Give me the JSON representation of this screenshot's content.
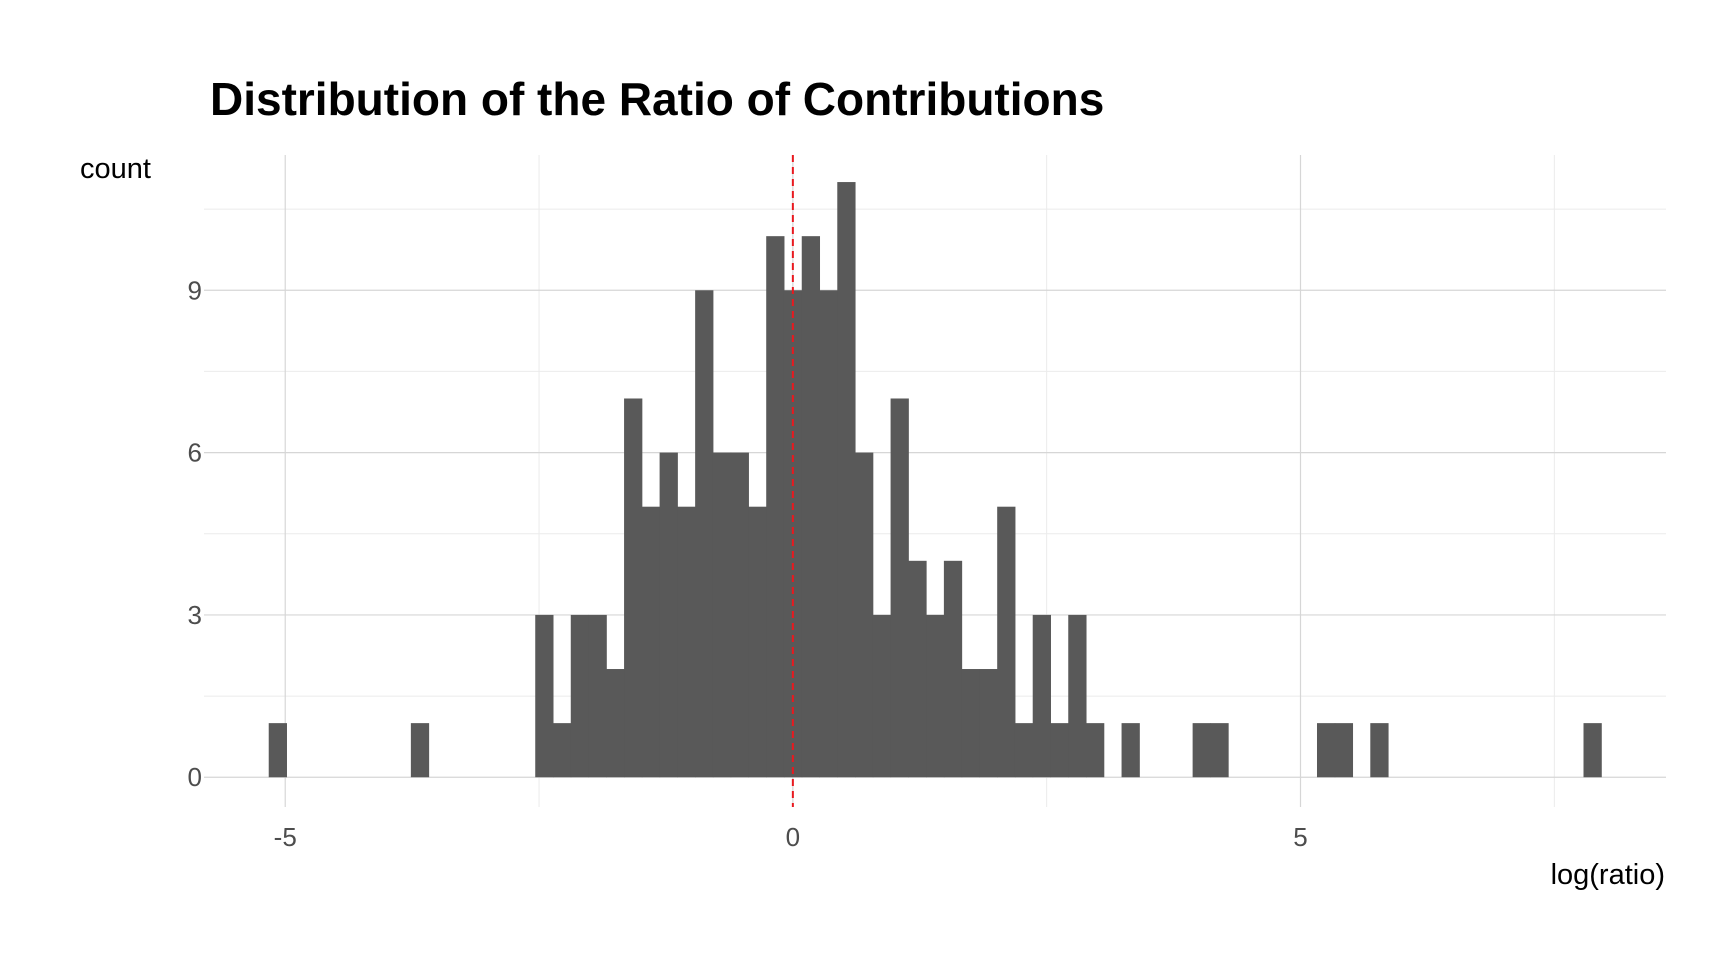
{
  "chart_data": {
    "type": "bar",
    "title": "Distribution of the Ratio of Contributions",
    "xlabel": "log(ratio)",
    "ylabel": "count",
    "xlim": [
      -5.8,
      8.6
    ],
    "ylim": [
      -0.55,
      11.5
    ],
    "xticks": [
      -5,
      0,
      5
    ],
    "xtick_labels": [
      "-5",
      "0",
      "5"
    ],
    "yticks": [
      0,
      3,
      6,
      9
    ],
    "ytick_labels": [
      "0",
      "3",
      "6",
      "9"
    ],
    "grid": true,
    "bar_color": "#595959",
    "reference_line": {
      "x": 0,
      "color": "#e8191f",
      "style": "dashed"
    },
    "bin_width": 0.175,
    "bins": [
      {
        "x": -5.075,
        "count": 1
      },
      {
        "x": -3.675,
        "count": 1
      },
      {
        "x": -2.45,
        "count": 3
      },
      {
        "x": -2.275,
        "count": 1
      },
      {
        "x": -2.1,
        "count": 3
      },
      {
        "x": -1.925,
        "count": 3
      },
      {
        "x": -1.75,
        "count": 2
      },
      {
        "x": -1.575,
        "count": 7
      },
      {
        "x": -1.4,
        "count": 5
      },
      {
        "x": -1.225,
        "count": 6
      },
      {
        "x": -1.05,
        "count": 5
      },
      {
        "x": -0.875,
        "count": 9
      },
      {
        "x": -0.7,
        "count": 6
      },
      {
        "x": -0.525,
        "count": 6
      },
      {
        "x": -0.35,
        "count": 5
      },
      {
        "x": -0.175,
        "count": 10
      },
      {
        "x": 0.0,
        "count": 9
      },
      {
        "x": 0.175,
        "count": 10
      },
      {
        "x": 0.35,
        "count": 9
      },
      {
        "x": 0.525,
        "count": 11
      },
      {
        "x": 0.7,
        "count": 6
      },
      {
        "x": 0.875,
        "count": 3
      },
      {
        "x": 1.05,
        "count": 7
      },
      {
        "x": 1.225,
        "count": 4
      },
      {
        "x": 1.4,
        "count": 3
      },
      {
        "x": 1.575,
        "count": 4
      },
      {
        "x": 1.75,
        "count": 2
      },
      {
        "x": 1.925,
        "count": 2
      },
      {
        "x": 2.1,
        "count": 5
      },
      {
        "x": 2.275,
        "count": 1
      },
      {
        "x": 2.45,
        "count": 3
      },
      {
        "x": 2.625,
        "count": 1
      },
      {
        "x": 2.8,
        "count": 3
      },
      {
        "x": 2.975,
        "count": 1
      },
      {
        "x": 3.325,
        "count": 1
      },
      {
        "x": 4.025,
        "count": 1
      },
      {
        "x": 4.2,
        "count": 1
      },
      {
        "x": 5.25,
        "count": 1
      },
      {
        "x": 5.425,
        "count": 1
      },
      {
        "x": 5.775,
        "count": 1
      },
      {
        "x": 7.875,
        "count": 1
      }
    ]
  }
}
